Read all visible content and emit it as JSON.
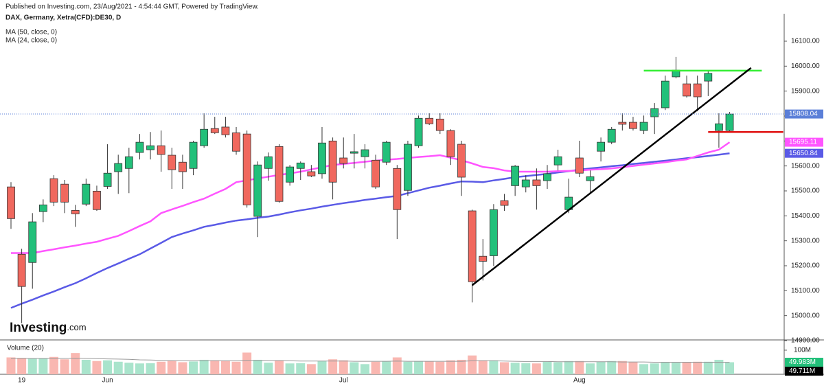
{
  "chart_data": {
    "type": "candlestick",
    "header": "Published on Investing.com, 23/Aug/2021 - 4:54:44 GMT, Powered by TradingView.",
    "title": "DAX, Germany, Xetra(CFD):DE30, D",
    "watermark": "Investing",
    "watermark_suffix": ".com",
    "categories": [
      null,
      "19",
      null,
      null,
      null,
      null,
      null,
      null,
      null,
      "Jun",
      null,
      null,
      null,
      null,
      null,
      null,
      null,
      null,
      null,
      null,
      null,
      null,
      null,
      null,
      null,
      null,
      null,
      null,
      null,
      null,
      null,
      "Jul",
      null,
      null,
      null,
      null,
      null,
      null,
      null,
      null,
      null,
      null,
      null,
      null,
      null,
      null,
      null,
      null,
      null,
      null,
      null,
      null,
      null,
      "Aug",
      null,
      null,
      null,
      null,
      null,
      null,
      null,
      null,
      null,
      null,
      null,
      null,
      null,
      null
    ],
    "open": [
      15516,
      15246,
      15213,
      15417,
      15549,
      15527,
      15422,
      15447,
      15499,
      15518,
      15577,
      15590,
      15654,
      15665,
      15681,
      15643,
      15615,
      15590,
      15681,
      15750,
      15756,
      15733,
      15728,
      15398,
      15590,
      15678,
      15535,
      15590,
      15577,
      15569,
      15700,
      15632,
      15651,
      15637,
      15623,
      15615,
      15590,
      15502,
      15681,
      15791,
      15788,
      15742,
      15687,
      15420,
      15238,
      15240,
      15461,
      15521,
      15516,
      15544,
      15541,
      15604,
      15425,
      15632,
      15541,
      15659,
      15695,
      15775,
      15775,
      15742,
      15797,
      15833,
      15957,
      15929,
      15929,
      15940,
      15742,
      15742
    ],
    "high": [
      15535,
      15268,
      15411,
      15466,
      15563,
      15544,
      15444,
      15549,
      15521,
      15687,
      15645,
      15673,
      15728,
      15736,
      15742,
      15673,
      15645,
      15701,
      15811,
      15797,
      15797,
      15756,
      15742,
      15618,
      15654,
      15687,
      15604,
      15618,
      15604,
      15756,
      15714,
      15714,
      15728,
      15687,
      15645,
      15701,
      15604,
      15701,
      15802,
      15811,
      15811,
      15747,
      15701,
      15425,
      15307,
      15447,
      15488,
      15604,
      15563,
      15590,
      15604,
      15665,
      15549,
      15701,
      15582,
      15714,
      15756,
      15811,
      15797,
      15802,
      15852,
      15962,
      16037,
      15962,
      15962,
      15982,
      15811,
      15816
    ],
    "low": [
      15348,
      14970,
      15108,
      15375,
      15439,
      15411,
      15356,
      15439,
      15420,
      15508,
      15488,
      15491,
      15626,
      15626,
      15577,
      15508,
      15508,
      15563,
      15673,
      15728,
      15714,
      15645,
      15433,
      15315,
      15541,
      15453,
      15521,
      15544,
      15555,
      15549,
      15466,
      15590,
      15590,
      15590,
      15508,
      15604,
      15307,
      15480,
      15673,
      15764,
      15728,
      15604,
      15480,
      15053,
      15141,
      15199,
      15420,
      15480,
      15494,
      15425,
      15508,
      15582,
      15411,
      15555,
      15494,
      15618,
      15687,
      15742,
      15742,
      15728,
      15728,
      15824,
      15951,
      15874,
      15819,
      15880,
      15673,
      15736
    ],
    "close": [
      15389,
      15117,
      15376,
      15444,
      15455,
      15455,
      15408,
      15527,
      15425,
      15571,
      15610,
      15637,
      15695,
      15681,
      15646,
      15585,
      15577,
      15695,
      15747,
      15733,
      15725,
      15659,
      15444,
      15604,
      15637,
      15458,
      15596,
      15612,
      15560,
      15692,
      15535,
      15610,
      15657,
      15665,
      15516,
      15695,
      15425,
      15687,
      15791,
      15769,
      15742,
      15637,
      15555,
      15136,
      15218,
      15425,
      15442,
      15599,
      15544,
      15521,
      15569,
      15637,
      15475,
      15571,
      15557,
      15695,
      15747,
      15767,
      15750,
      15775,
      15830,
      15940,
      15984,
      15880,
      15877,
      15971,
      15769,
      15808.04
    ],
    "up_color": "#22c07a",
    "down_color": "#f0685e",
    "price_line_color": "#5b7fd8",
    "series": [
      {
        "name": "MA (50, close, 0)",
        "color": "#5a5ae6",
        "values": [
          15031,
          15048,
          15064,
          15081,
          15097,
          15114,
          15130,
          15150,
          15171,
          15191,
          15209,
          15228,
          15246,
          15269,
          15292,
          15315,
          15329,
          15342,
          15356,
          15364,
          15373,
          15381,
          15386,
          15392,
          15397,
          15405,
          15414,
          15422,
          15429,
          15437,
          15444,
          15451,
          15457,
          15464,
          15469,
          15475,
          15480,
          15491,
          15502,
          15513,
          15521,
          15530,
          15538,
          15537,
          15535,
          15542,
          15548,
          15555,
          15559,
          15564,
          15568,
          15574,
          15579,
          15585,
          15590,
          15594,
          15599,
          15603,
          15608,
          15612,
          15617,
          15621,
          15626,
          15631,
          15635,
          15640,
          15645,
          15650.84
        ]
      },
      {
        "name": "MA (24, close, 0)",
        "color": "#ff55ff",
        "values": [
          15251,
          15251,
          15251,
          15259,
          15266,
          15274,
          15281,
          15289,
          15296,
          15308,
          15320,
          15339,
          15359,
          15378,
          15411,
          15426,
          15440,
          15455,
          15469,
          15489,
          15508,
          15535,
          15542,
          15550,
          15557,
          15564,
          15570,
          15577,
          15586,
          15595,
          15604,
          15608,
          15612,
          15617,
          15621,
          15625,
          15628,
          15632,
          15636,
          15639,
          15643,
          15633,
          15623,
          15610,
          15596,
          15591,
          15582,
          15577,
          15577,
          15577,
          15577,
          15579,
          15580,
          15582,
          15585,
          15587,
          15590,
          15595,
          15600,
          15605,
          15610,
          15615,
          15621,
          15626,
          15640,
          15654,
          15665,
          15695.11
        ]
      }
    ],
    "ylim": [
      14900,
      16210
    ],
    "yticks": [
      {
        "value": 14900,
        "label": "14900.00"
      },
      {
        "value": 15000,
        "label": "15000.00"
      },
      {
        "value": 15100,
        "label": "15100.00"
      },
      {
        "value": 15200,
        "label": "15200.00"
      },
      {
        "value": 15300,
        "label": "15300.00"
      },
      {
        "value": 15400,
        "label": "15400.00"
      },
      {
        "value": 15500,
        "label": "15500.00"
      },
      {
        "value": 15600,
        "label": "15600.00"
      },
      {
        "value": 15700,
        "label": "15700.00"
      },
      {
        "value": 15800,
        "label": "15800.00"
      },
      {
        "value": 15900,
        "label": "15900.00"
      },
      {
        "value": 16000,
        "label": "16000.00"
      },
      {
        "value": 16100,
        "label": "16100.00"
      }
    ],
    "drawings": [
      {
        "color": "#33ee33",
        "x": [
          59,
          70
        ],
        "y": [
          15982,
          15982
        ]
      },
      {
        "color": "#e01010",
        "x": [
          65,
          72
        ],
        "y": [
          15736,
          15736
        ]
      },
      {
        "color": "#000000",
        "x": [
          43,
          69
        ],
        "y": [
          15122,
          15993
        ]
      }
    ],
    "volume": {
      "name": "Volume (20)",
      "up_color": "#a9e4cc",
      "down_color": "#f9b7b1",
      "last_label": "49.983M",
      "values": [
        70,
        68,
        65,
        66,
        72,
        62,
        88,
        60,
        55,
        58,
        52,
        48,
        45,
        46,
        52,
        55,
        50,
        53,
        60,
        58,
        56,
        52,
        90,
        60,
        48,
        58,
        45,
        46,
        42,
        55,
        62,
        58,
        50,
        42,
        52,
        55,
        70,
        52,
        55,
        54,
        52,
        58,
        60,
        78,
        58,
        58,
        50,
        48,
        46,
        45,
        52,
        50,
        55,
        55,
        45,
        52,
        55,
        55,
        50,
        42,
        45,
        50,
        48,
        50,
        52,
        52,
        60,
        49.983
      ],
      "ma": {
        "color": "#999999",
        "last_label": "49.711M",
        "values": [
          66,
          66,
          66,
          66,
          66,
          66,
          67,
          66,
          65,
          64,
          63,
          62,
          60,
          59,
          58,
          57,
          56,
          56,
          56,
          56,
          56,
          56,
          58,
          58,
          57,
          57,
          56,
          55,
          55,
          55,
          55,
          55,
          54,
          54,
          54,
          54,
          55,
          54,
          54,
          54,
          54,
          54,
          54,
          56,
          56,
          56,
          55,
          54,
          53,
          53,
          53,
          52,
          52,
          52,
          52,
          52,
          52,
          51,
          51,
          51,
          50,
          50,
          50,
          50,
          50,
          50,
          50,
          49.711
        ]
      },
      "ylim": [
        0,
        134
      ],
      "yticks": [
        {
          "value": 100,
          "label": "100M"
        }
      ]
    }
  }
}
